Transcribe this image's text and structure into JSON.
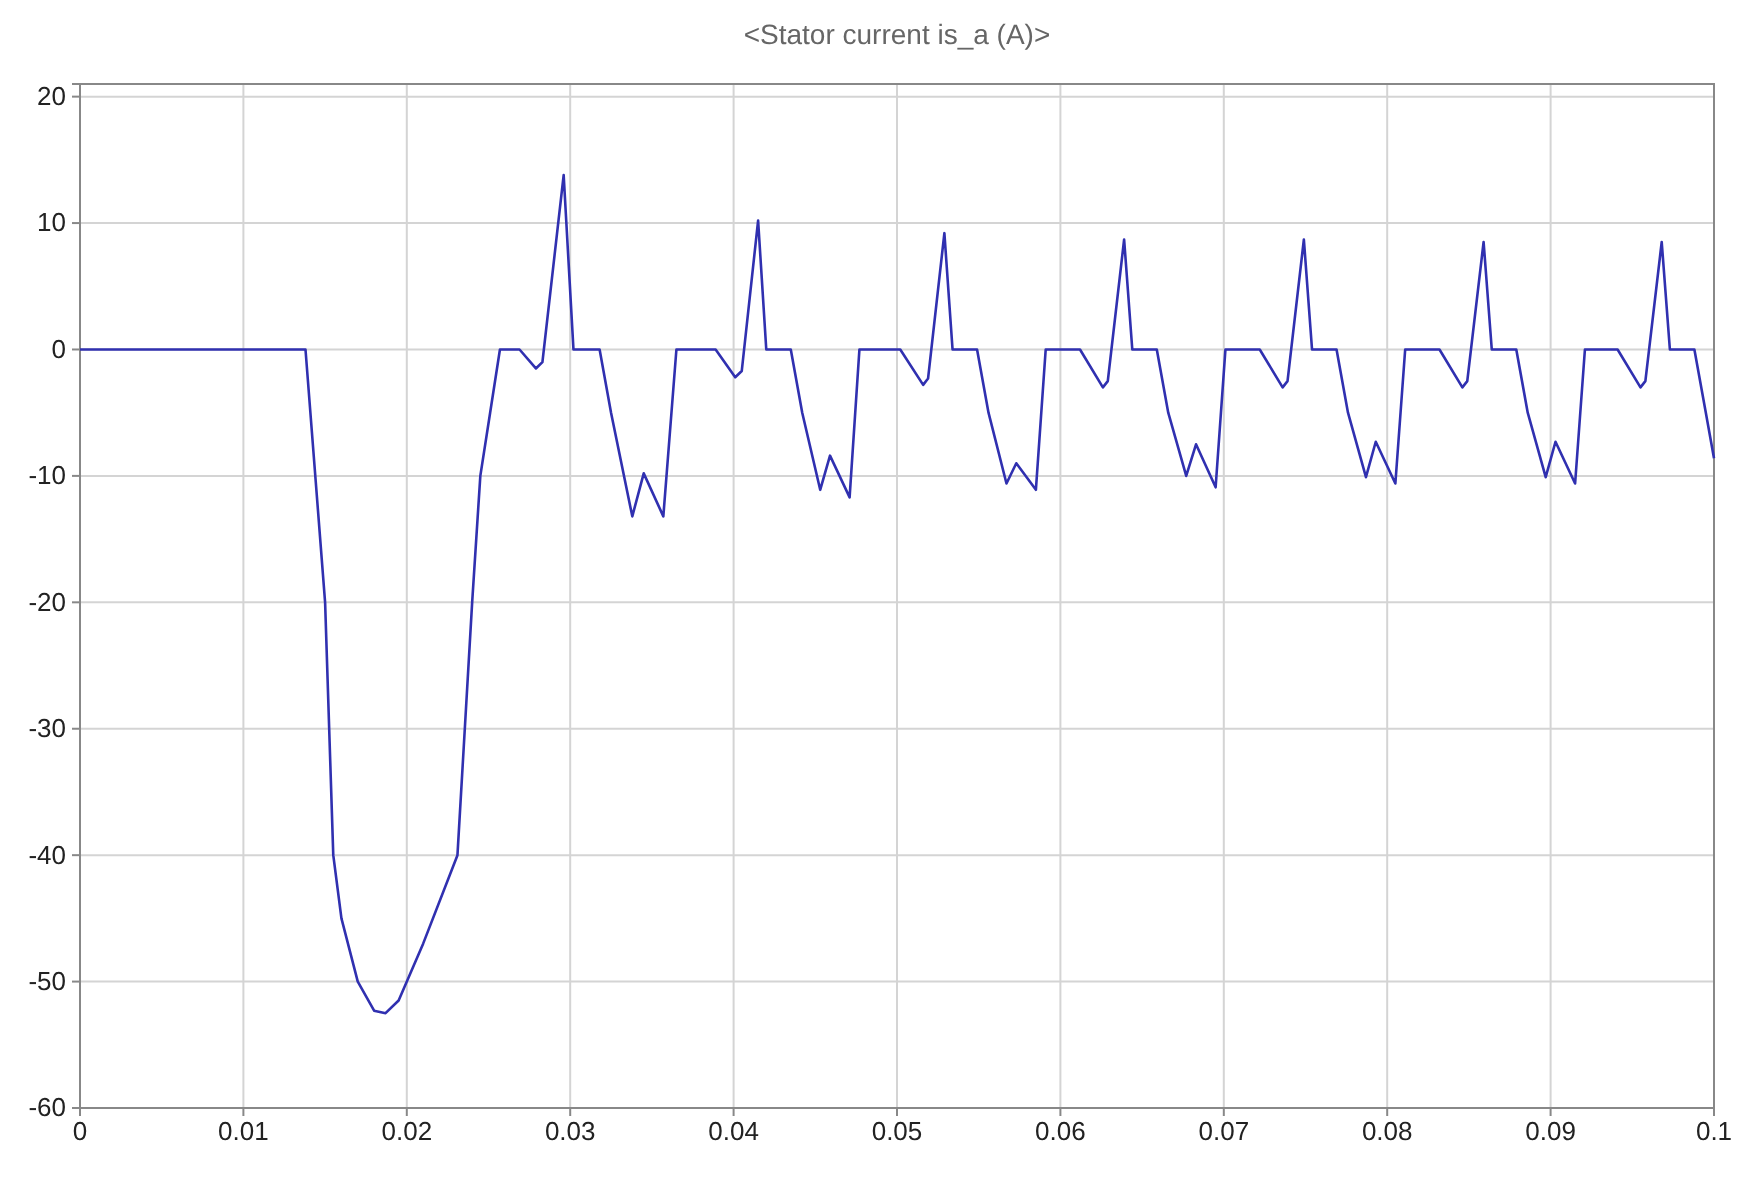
{
  "chart_data": {
    "type": "line",
    "title": "<Stator current is_a (A)>",
    "xlim": [
      0,
      0.1
    ],
    "xticks": [
      0,
      0.01,
      0.02,
      0.03,
      0.04,
      0.05,
      0.06,
      0.07,
      0.08,
      0.09,
      0.1
    ],
    "ylim": [
      -60,
      21
    ],
    "yticks": [
      -60,
      -50,
      -40,
      -30,
      -20,
      -10,
      0,
      10,
      20
    ],
    "grid": true,
    "line_style": "solid",
    "marker": "none",
    "series": [
      {
        "color": "#3030b0",
        "x": [
          0,
          0.0138,
          0.015,
          0.0155,
          0.016,
          0.017,
          0.018,
          0.0187,
          0.0195,
          0.021,
          0.0231,
          0.024,
          0.0245,
          0.0251,
          0.0257,
          0.0269,
          0.0279,
          0.0283,
          0.0296,
          0.0302,
          0.0318,
          0.0325,
          0.0338,
          0.0345,
          0.0357,
          0.0365,
          0.0389,
          0.0401,
          0.0405,
          0.0415,
          0.042,
          0.0435,
          0.0442,
          0.0453,
          0.0459,
          0.0471,
          0.0477,
          0.0502,
          0.0516,
          0.0519,
          0.0529,
          0.0534,
          0.0549,
          0.0556,
          0.0567,
          0.0573,
          0.0585,
          0.0591,
          0.0612,
          0.0626,
          0.0629,
          0.0639,
          0.0644,
          0.0659,
          0.0666,
          0.0677,
          0.0683,
          0.0695,
          0.0701,
          0.0722,
          0.0736,
          0.0739,
          0.0749,
          0.0754,
          0.0769,
          0.0776,
          0.0787,
          0.0793,
          0.0805,
          0.0811,
          0.0832,
          0.0846,
          0.0849,
          0.0859,
          0.0864,
          0.0879,
          0.0886,
          0.0897,
          0.0903,
          0.0915,
          0.0921,
          0.0941,
          0.0955,
          0.0958,
          0.0968,
          0.0973,
          0.0988,
          0.0995,
          0.1
        ],
        "values": [
          0,
          0,
          -20,
          -40,
          -45,
          -50,
          -52.3,
          -52.5,
          -51.5,
          -47,
          -40,
          -20,
          -10,
          -5,
          0,
          0,
          -1.5,
          -1,
          13.8,
          0,
          0,
          -5,
          -13.2,
          -9.8,
          -13.2,
          0,
          0,
          -2.2,
          -1.7,
          10.2,
          0,
          0,
          -5,
          -11.1,
          -8.4,
          -11.7,
          0,
          0,
          -2.8,
          -2.3,
          9.2,
          0,
          0,
          -5,
          -10.6,
          -9,
          -11.1,
          0,
          0,
          -3,
          -2.5,
          8.7,
          0,
          0,
          -5,
          -10,
          -7.5,
          -10.9,
          0,
          0,
          -3,
          -2.5,
          8.7,
          0,
          0,
          -5,
          -10.1,
          -7.3,
          -10.6,
          0,
          0,
          -3,
          -2.5,
          8.5,
          0,
          0,
          -5,
          -10.1,
          -7.3,
          -10.6,
          0,
          0,
          -3,
          -2.5,
          8.5,
          0,
          0,
          -5,
          -8.6
        ]
      }
    ]
  }
}
